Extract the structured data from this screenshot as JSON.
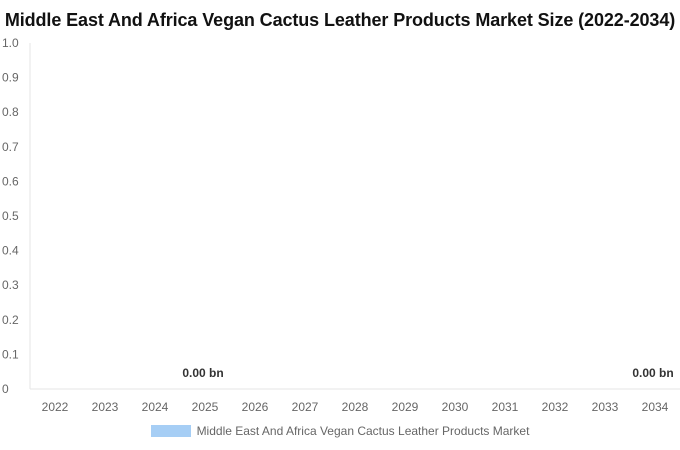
{
  "chart_data": {
    "type": "bar",
    "title": "Middle East And Africa Vegan Cactus Leather Products Market Size (2022-2034)",
    "xlabel": "",
    "ylabel": "",
    "categories": [
      "2022",
      "2023",
      "2024",
      "2025",
      "2026",
      "2027",
      "2028",
      "2029",
      "2030",
      "2031",
      "2032",
      "2033",
      "2034"
    ],
    "series": [
      {
        "name": "Middle East And Africa Vegan Cactus Leather Products Market",
        "values": [
          0,
          0,
          0,
          0,
          0,
          0,
          0,
          0,
          0,
          0,
          0,
          0,
          0
        ],
        "color": "#a6cef5"
      }
    ],
    "ylim": [
      0,
      1.0
    ],
    "yticks": [
      "0",
      "0.1",
      "0.2",
      "0.3",
      "0.4",
      "0.5",
      "0.6",
      "0.7",
      "0.8",
      "0.9",
      "1.0"
    ],
    "data_labels": [
      {
        "category": "2025",
        "text": "0.00 bn"
      },
      {
        "category": "2034",
        "text": "0.00 bn"
      }
    ],
    "grid": false,
    "legend_position": "bottom"
  }
}
